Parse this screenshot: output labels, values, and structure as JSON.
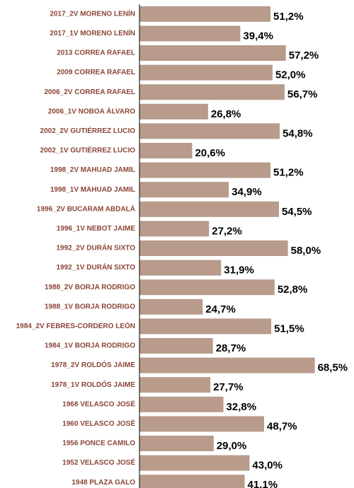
{
  "chart_data": {
    "type": "bar",
    "orientation": "horizontal",
    "categories": [
      "2017_2V MORENO LENÍN",
      "2017_1V MORENO LENÍN",
      "2013 CORREA RAFAEL",
      "2009 CORREA RAFAEL",
      "2006_2V CORREA RAFAEL",
      "2006_1V NOBOA ÁLVARO",
      "2002_2V GUTIÉRREZ LUCIO",
      "2002_1V GUTIÉRREZ LUCIO",
      "1998_2V MAHUAD JAMIL",
      "1998_1V MAHUAD JAMIL",
      "1996_2V BUCARAM ABDALÁ",
      "1996_1V NEBOT JAIME",
      "1992_2V DURÁN SIXTO",
      "1992_1V DURÁN SIXTO",
      "1988_2V BORJA RODRIGO",
      "1988_1V BORJA RODRIGO",
      "1984_2V FEBRES-CORDERO LEÓN",
      "1984_1V BORJA RODRIGO",
      "1978_2V ROLDÓS JAIME",
      "1978_1V ROLDÓS JAIME",
      "1968 VELASCO JOSÉ",
      "1960 VELASCO JOSÉ",
      "1956 PONCE CAMILO",
      "1952 VELASCO JOSÉ",
      "1948 PLAZA GALO"
    ],
    "values": [
      51.2,
      39.4,
      57.2,
      52.0,
      56.7,
      26.8,
      54.8,
      20.6,
      51.2,
      34.9,
      54.5,
      27.2,
      58.0,
      31.9,
      52.8,
      24.7,
      51.5,
      28.7,
      68.5,
      27.7,
      32.8,
      48.7,
      29.0,
      43.0,
      41.1
    ],
    "value_labels": [
      "51,2%",
      "39,4%",
      "57,2%",
      "52,0%",
      "56,7%",
      "26,8%",
      "54,8%",
      "20,6%",
      "51,2%",
      "34,9%",
      "54,5%",
      "27,2%",
      "58,0%",
      "31,9%",
      "52,8%",
      "24,7%",
      "51,5%",
      "28,7%",
      "68,5%",
      "27,7%",
      "32,8%",
      "48,7%",
      "29,0%",
      "43,0%",
      "41,1%"
    ],
    "color": "#b89b8b",
    "xlim": [
      0,
      70
    ]
  }
}
